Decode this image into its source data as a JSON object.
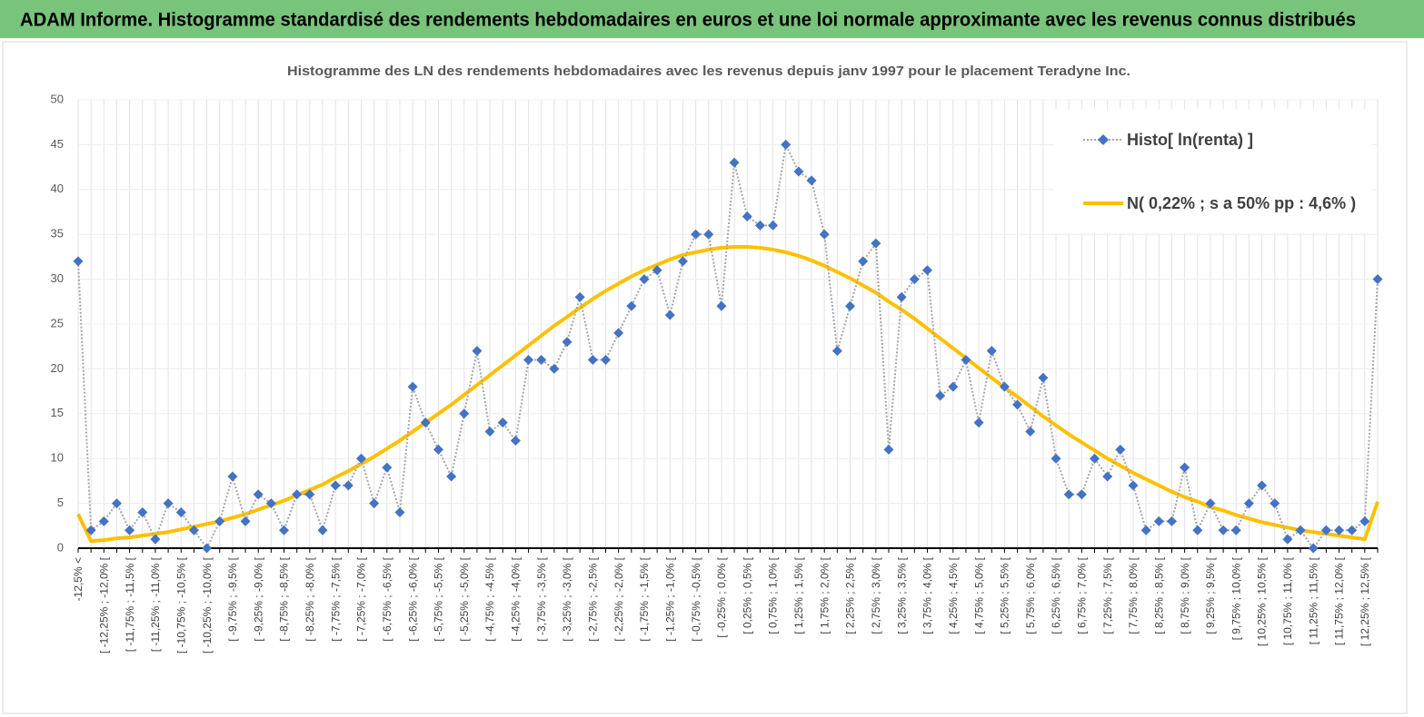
{
  "header": {
    "title": "ADAM Informe. Histogramme standardisé des rendements hebdomadaires en euros et une loi normale approximante avec les revenus connus distribués"
  },
  "chart_data": {
    "type": "line",
    "title": "Histogramme des LN des rendements hebdomadaires avec les revenus depuis janv 1997 pour le placement Teradyne Inc.",
    "categories": [
      "-12,5% <",
      null,
      "[ -12,25% ; -12,0% [",
      null,
      "[ -11,75% ; -11,5% [",
      null,
      "[ -11,25% ; -11,0% [",
      null,
      "[ -10,75% ; -10,5% [",
      null,
      "[ -10,25% ; -10,0% [",
      null,
      "[ -9,75% ; -9,5% [",
      null,
      "[ -9,25% ; -9,0% [",
      null,
      "[ -8,75% ; -8,5% [",
      null,
      "[ -8,25% ; -8,0% [",
      null,
      "[ -7,75% ; -7,5% [",
      null,
      "[ -7,25% ; -7,0% [",
      null,
      "[ -6,75% ; -6,5% [",
      null,
      "[ -6,25% ; -6,0% [",
      null,
      "[ -5,75% ; -5,5% [",
      null,
      "[ -5,25% ; -5,0% [",
      null,
      "[ -4,75% ; -4,5% [",
      null,
      "[ -4,25% ; -4,0% [",
      null,
      "[ -3,75% ; -3,5% [",
      null,
      "[ -3,25% ; -3,0% [",
      null,
      "[ -2,75% ; -2,5% [",
      null,
      "[ -2,25% ; -2,0% [",
      null,
      "[ -1,75% ; -1,5% [",
      null,
      "[ -1,25% ; -1,0% [",
      null,
      "[ -0,75% ; -0,5% [",
      null,
      "[ -0,25% ; 0,0% [",
      null,
      "[ 0,25% ; 0,5% [",
      null,
      "[ 0,75% ; 1,0% [",
      null,
      "[ 1,25% ; 1,5% [",
      null,
      "[ 1,75% ; 2,0% [",
      null,
      "[ 2,25% ; 2,5% [",
      null,
      "[ 2,75% ; 3,0% [",
      null,
      "[ 3,25% ; 3,5% [",
      null,
      "[ 3,75% ; 4,0% [",
      null,
      "[ 4,25% ; 4,5% [",
      null,
      "[ 4,75% ; 5,0% [",
      null,
      "[ 5,25% ; 5,5% [",
      null,
      "[ 5,75% ; 6,0% [",
      null,
      "[ 6,25% ; 6,5% [",
      null,
      "[ 6,75% ; 7,0% [",
      null,
      "[ 7,25% ; 7,5% [",
      null,
      "[ 7,75% ; 8,0% [",
      null,
      "[ 8,25% ; 8,5% [",
      null,
      "[ 8,75% ; 9,0% [",
      null,
      "[ 9,25% ; 9,5% [",
      null,
      "[ 9,75% ; 10,0% [",
      null,
      "[ 10,25% ; 10,5% [",
      null,
      "[ 10,75% ; 11,0% [",
      null,
      "[ 11,25% ; 11,5% [",
      null,
      "[ 11,75% ; 12,0% [",
      null,
      "[ 12,25% ; 12,5% [",
      null
    ],
    "series": [
      {
        "name": "Histo[ ln(renta) ]",
        "color": "#4472c4",
        "line_color": "#a6a6a6",
        "values": [
          32,
          2,
          3,
          5,
          2,
          4,
          1,
          5,
          4,
          2,
          0,
          3,
          8,
          3,
          6,
          5,
          2,
          6,
          6,
          2,
          7,
          7,
          10,
          5,
          9,
          4,
          18,
          14,
          11,
          8,
          15,
          22,
          13,
          14,
          12,
          21,
          21,
          20,
          23,
          28,
          21,
          21,
          24,
          27,
          30,
          31,
          26,
          32,
          35,
          35,
          27,
          43,
          37,
          36,
          36,
          45,
          42,
          41,
          35,
          22,
          27,
          32,
          34,
          11,
          28,
          30,
          31,
          17,
          18,
          21,
          14,
          22,
          18,
          16,
          13,
          19,
          10,
          6,
          6,
          10,
          8,
          11,
          7,
          2,
          3,
          3,
          9,
          2,
          5,
          2,
          2,
          5,
          7,
          5,
          1,
          2,
          0,
          2,
          2,
          2,
          3,
          30
        ]
      },
      {
        "name": "N( 0,22% ; s a 50% pp : 4,6% )",
        "color": "#ffc000",
        "values": [
          3.8,
          0.8,
          0.9,
          1.1,
          1.2,
          1.4,
          1.6,
          1.8,
          2.1,
          2.4,
          2.7,
          3.0,
          3.4,
          3.8,
          4.3,
          4.8,
          5.3,
          5.9,
          6.5,
          7.1,
          7.9,
          8.6,
          9.4,
          10.2,
          11.1,
          12.0,
          13.0,
          14.0,
          15.0,
          16.0,
          17.1,
          18.2,
          19.3,
          20.4,
          21.5,
          22.6,
          23.7,
          24.8,
          25.8,
          26.8,
          27.8,
          28.7,
          29.5,
          30.3,
          31.0,
          31.6,
          32.2,
          32.7,
          33.0,
          33.3,
          33.5,
          33.6,
          33.6,
          33.5,
          33.3,
          33.0,
          32.6,
          32.1,
          31.5,
          30.8,
          30.1,
          29.3,
          28.5,
          27.5,
          26.6,
          25.6,
          24.5,
          23.4,
          22.3,
          21.2,
          20.1,
          19.0,
          17.9,
          16.9,
          15.8,
          14.7,
          13.7,
          12.7,
          11.8,
          10.9,
          10.0,
          9.2,
          8.4,
          7.7,
          7.0,
          6.3,
          5.7,
          5.2,
          4.6,
          4.2,
          3.7,
          3.3,
          2.9,
          2.6,
          2.3,
          2.0,
          1.8,
          1.6,
          1.4,
          1.2,
          1.0,
          5.2
        ]
      }
    ],
    "ylim": [
      0,
      50
    ],
    "yticks": [
      0,
      5,
      10,
      15,
      20,
      25,
      30,
      35,
      40,
      45,
      50
    ],
    "grid": true,
    "legend": "top-right"
  }
}
